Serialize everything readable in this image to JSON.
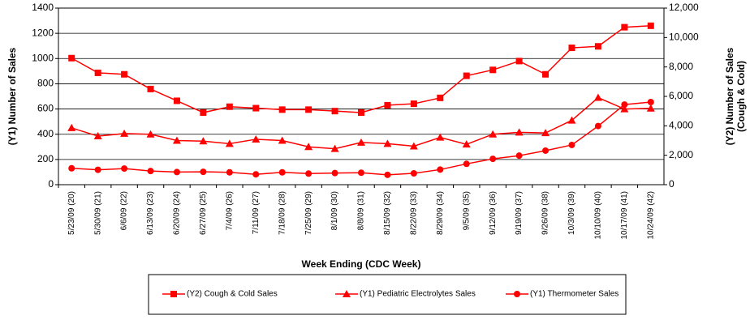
{
  "chart_data": {
    "type": "line",
    "x_label": "Week Ending (CDC Week)",
    "y_label": "(Y1) Number of Sales",
    "y2_label": [
      "(Y2) Number of Sales",
      "(Cough & Cold)"
    ],
    "categories": [
      "5/23/09 (20)",
      "5/30/09 (21)",
      "6/6/09 (22)",
      "6/13/09 (23)",
      "6/20/09 (24)",
      "6/27/09 (25)",
      "7/4/09 (26)",
      "7/11/09 (27)",
      "7/18/09 (28)",
      "7/25/09 (29)",
      "8/1/09 (30)",
      "8/8/09 (31)",
      "8/15/09 (32)",
      "8/22/09 (33)",
      "8/29/09 (34)",
      "9/5/09 (35)",
      "9/12/09 (36)",
      "9/19/09 (37)",
      "9/26/09 (38)",
      "10/3/09 (39)",
      "10/10/09 (40)",
      "10/17/09 (41)",
      "10/24/09 (42)"
    ],
    "series": [
      {
        "name": "(Y2) Cough & Cold Sales",
        "color": "#ff0000",
        "marker": "square",
        "axis": "y2",
        "values": [
          8600,
          7600,
          7500,
          6500,
          5700,
          4900,
          5300,
          5200,
          5100,
          5100,
          5000,
          4900,
          5400,
          5500,
          5900,
          7400,
          7800,
          8400,
          7500,
          9300,
          9400,
          10700,
          10800
        ]
      },
      {
        "name": "(Y1) Pediatric Electrolytes Sales",
        "color": "#ff0000",
        "marker": "triangle",
        "axis": "y",
        "values": [
          450,
          385,
          405,
          400,
          350,
          345,
          325,
          360,
          350,
          300,
          285,
          335,
          325,
          305,
          375,
          320,
          400,
          415,
          410,
          510,
          690,
          600,
          605
        ]
      },
      {
        "name": "(Y1) Thermometer Sales",
        "color": "#ff0000",
        "marker": "circle",
        "axis": "y",
        "values": [
          130,
          118,
          128,
          108,
          100,
          102,
          98,
          82,
          98,
          88,
          92,
          95,
          78,
          90,
          120,
          165,
          205,
          230,
          270,
          315,
          465,
          635,
          655
        ]
      }
    ],
    "ylim": [
      0,
      1400
    ],
    "yticks": [
      0,
      200,
      400,
      600,
      800,
      1000,
      1200,
      1400
    ],
    "y2lim": [
      0,
      12000
    ],
    "y2ticks": [
      0,
      {
        "value": 2000,
        "label": "2,000"
      },
      {
        "value": 4000,
        "label": "4,000"
      },
      {
        "value": 6000,
        "label": "6,000"
      },
      {
        "value": 8000,
        "label": "8,000"
      },
      {
        "value": 10000,
        "label": "10,000"
      },
      {
        "value": 12000,
        "label": "12,000"
      }
    ],
    "grid": true,
    "legend": "bottom"
  }
}
